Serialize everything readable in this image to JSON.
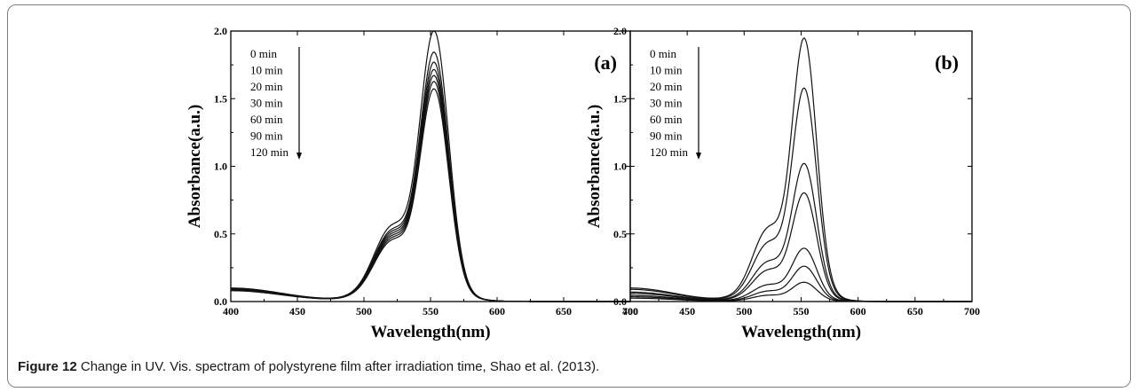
{
  "caption": {
    "label": "Figure 12",
    "text": "Change in UV. Vis. spectram of polystyrene film after irradiation time, Shao et al. (2013)."
  },
  "chart_data": [
    {
      "type": "line",
      "panel_label": "(a)",
      "xlabel": "Wavelength(nm)",
      "ylabel": "Absorbance(a.u.)",
      "xlim": [
        400,
        700
      ],
      "ylim": [
        0,
        2.0
      ],
      "xticks": [
        "400",
        "450",
        "500",
        "550",
        "600",
        "650",
        "700"
      ],
      "yticks": [
        "0.0",
        "0.5",
        "1.0",
        "1.5",
        "2.0"
      ],
      "grid": false,
      "legend_placement": "top-left",
      "legend_entries": [
        "0 min",
        "10 min",
        "20 min",
        "30 min",
        "60 min",
        "90 min",
        "120 min"
      ],
      "series": [
        {
          "name": "0 min",
          "peak": 1.85,
          "shoulder": 0.72,
          "baseline": 0.1
        },
        {
          "name": "10 min",
          "peak": 1.7,
          "shoulder": 0.68,
          "baseline": 0.095
        },
        {
          "name": "20 min",
          "peak": 1.63,
          "shoulder": 0.66,
          "baseline": 0.09
        },
        {
          "name": "30 min",
          "peak": 1.58,
          "shoulder": 0.64,
          "baseline": 0.088
        },
        {
          "name": "60 min",
          "peak": 1.54,
          "shoulder": 0.62,
          "baseline": 0.085
        },
        {
          "name": "90 min",
          "peak": 1.5,
          "shoulder": 0.6,
          "baseline": 0.082
        },
        {
          "name": "120 min",
          "peak": 1.45,
          "shoulder": 0.58,
          "baseline": 0.08
        }
      ]
    },
    {
      "type": "line",
      "panel_label": "(b)",
      "xlabel": "Wavelength(nm)",
      "ylabel": "Absorbance(a.u.)",
      "xlim": [
        400,
        700
      ],
      "ylim": [
        0,
        2.0
      ],
      "xticks": [
        "400",
        "450",
        "500",
        "550",
        "600",
        "650",
        "700"
      ],
      "yticks": [
        "0.0",
        "0.5",
        "1.0",
        "1.5",
        "2.0"
      ],
      "grid": false,
      "legend_placement": "top-left",
      "legend_entries": [
        "0 min",
        "10 min",
        "20 min",
        "30 min",
        "60 min",
        "90 min",
        "120 min"
      ],
      "series": [
        {
          "name": "0 min",
          "peak": 1.8,
          "shoulder": 0.7,
          "baseline": 0.1
        },
        {
          "name": "10 min",
          "peak": 1.46,
          "shoulder": 0.56,
          "baseline": 0.09
        },
        {
          "name": "20 min",
          "peak": 0.94,
          "shoulder": 0.38,
          "baseline": 0.07
        },
        {
          "name": "30 min",
          "peak": 0.74,
          "shoulder": 0.3,
          "baseline": 0.06
        },
        {
          "name": "60 min",
          "peak": 0.36,
          "shoulder": 0.16,
          "baseline": 0.045
        },
        {
          "name": "90 min",
          "peak": 0.24,
          "shoulder": 0.1,
          "baseline": 0.035
        },
        {
          "name": "120 min",
          "peak": 0.13,
          "shoulder": 0.06,
          "baseline": 0.025
        }
      ]
    }
  ]
}
